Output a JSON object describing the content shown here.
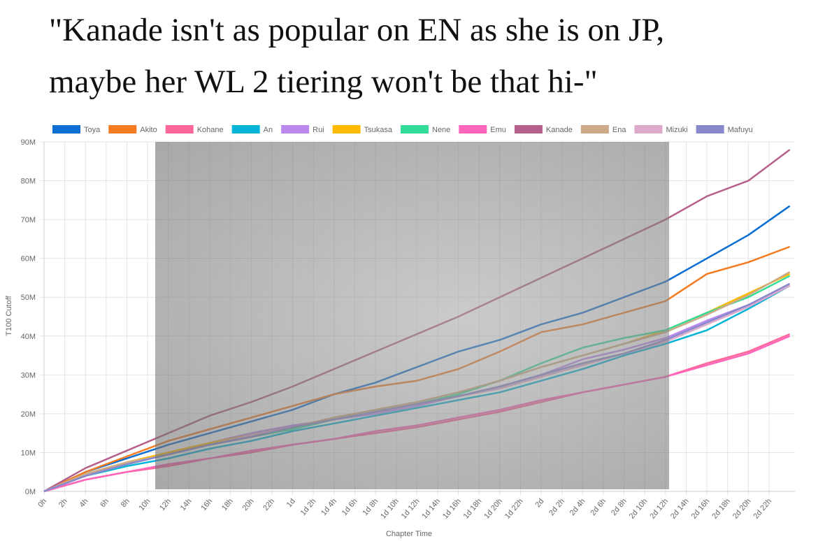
{
  "chart_data": {
    "type": "line",
    "title": [
      "\"Kanade isn't as popular on EN as she is on JP,",
      "maybe her WL 2 tiering won't be that hi-\""
    ],
    "x_label": "Chapter Time",
    "y_label": "T100 Cutoff",
    "x": [
      0,
      4,
      8,
      12,
      16,
      20,
      24,
      28,
      32,
      36,
      40,
      44,
      48,
      52,
      56,
      60,
      64,
      68,
      72
    ],
    "xlim": [
      0,
      72.5
    ],
    "xticks": [
      {
        "value": 0,
        "label": "0h"
      },
      {
        "value": 2,
        "label": "2h"
      },
      {
        "value": 4,
        "label": "4h"
      },
      {
        "value": 6,
        "label": "6h"
      },
      {
        "value": 8,
        "label": "8h"
      },
      {
        "value": 10,
        "label": "10h"
      },
      {
        "value": 12,
        "label": "12h"
      },
      {
        "value": 14,
        "label": "14h"
      },
      {
        "value": 16,
        "label": "16h"
      },
      {
        "value": 18,
        "label": "18h"
      },
      {
        "value": 20,
        "label": "20h"
      },
      {
        "value": 22,
        "label": "22h"
      },
      {
        "value": 24,
        "label": "1d"
      },
      {
        "value": 26,
        "label": "1d 2h"
      },
      {
        "value": 28,
        "label": "1d 4h"
      },
      {
        "value": 30,
        "label": "1d 6h"
      },
      {
        "value": 32,
        "label": "1d 8h"
      },
      {
        "value": 34,
        "label": "1d 10h"
      },
      {
        "value": 36,
        "label": "1d 12h"
      },
      {
        "value": 38,
        "label": "1d 14h"
      },
      {
        "value": 40,
        "label": "1d 16h"
      },
      {
        "value": 42,
        "label": "1d 18h"
      },
      {
        "value": 44,
        "label": "1d 20h"
      },
      {
        "value": 46,
        "label": "1d 22h"
      },
      {
        "value": 48,
        "label": "2d"
      },
      {
        "value": 50,
        "label": "2d 2h"
      },
      {
        "value": 52,
        "label": "2d 4h"
      },
      {
        "value": 54,
        "label": "2d 6h"
      },
      {
        "value": 56,
        "label": "2d 8h"
      },
      {
        "value": 58,
        "label": "2d 10h"
      },
      {
        "value": 60,
        "label": "2d 12h"
      },
      {
        "value": 62,
        "label": "2d 14h"
      },
      {
        "value": 64,
        "label": "2d 16h"
      },
      {
        "value": 66,
        "label": "2d 18h"
      },
      {
        "value": 68,
        "label": "2d 20h"
      },
      {
        "value": 70,
        "label": "2d 22h"
      }
    ],
    "ylim": [
      0,
      90
    ],
    "yticks": [
      {
        "value": 0,
        "label": "0M"
      },
      {
        "value": 10,
        "label": "10M"
      },
      {
        "value": 20,
        "label": "20M"
      },
      {
        "value": 30,
        "label": "30M"
      },
      {
        "value": 40,
        "label": "40M"
      },
      {
        "value": 50,
        "label": "50M"
      },
      {
        "value": 60,
        "label": "60M"
      },
      {
        "value": 70,
        "label": "70M"
      },
      {
        "value": 80,
        "label": "80M"
      },
      {
        "value": 90,
        "label": "90M"
      }
    ],
    "grid": true,
    "legend": "top",
    "series": [
      {
        "name": "Toya",
        "color": "#0a6ed3",
        "values": [
          0,
          5,
          8.5,
          12,
          15,
          18,
          21,
          25,
          28,
          32,
          36,
          39,
          43,
          46,
          50,
          54,
          60,
          66,
          73.5
        ]
      },
      {
        "name": "Akito",
        "color": "#f47b20",
        "values": [
          0,
          5,
          9,
          13,
          16,
          19,
          22,
          25,
          27,
          28.5,
          31.5,
          36,
          41,
          43,
          46,
          49,
          56,
          59,
          63
        ]
      },
      {
        "name": "Kohane",
        "color": "#ff6699",
        "values": [
          0,
          3,
          5,
          6.5,
          8.5,
          10,
          12,
          13.5,
          15,
          16.5,
          18.5,
          20.5,
          23,
          25.5,
          27.5,
          29.5,
          33,
          36,
          40.5
        ]
      },
      {
        "name": "An",
        "color": "#00b4d8",
        "values": [
          0,
          4,
          6.5,
          8.5,
          11,
          13,
          15.5,
          17.5,
          19.5,
          21.5,
          23.5,
          25.5,
          28.5,
          31.5,
          35,
          38,
          41.5,
          47,
          53
        ]
      },
      {
        "name": "Rui",
        "color": "#bb88ee",
        "values": [
          0,
          4,
          7,
          9.5,
          12.5,
          15,
          17,
          18.5,
          20,
          22,
          24.5,
          27,
          30,
          34,
          36.5,
          39.5,
          44,
          48,
          53
        ]
      },
      {
        "name": "Tsukasa",
        "color": "#ffbb00",
        "values": [
          0,
          4.5,
          7.5,
          10,
          12.5,
          14.5,
          16.5,
          19,
          21,
          23,
          25.5,
          28.5,
          32,
          35,
          38,
          41.5,
          46,
          51,
          56
        ]
      },
      {
        "name": "Nene",
        "color": "#33dd99",
        "values": [
          0,
          4,
          7,
          9.5,
          12,
          14,
          16,
          18.5,
          20.5,
          22.5,
          25,
          28.5,
          33,
          37,
          39.5,
          41.5,
          46,
          50,
          55.5
        ]
      },
      {
        "name": "Emu",
        "color": "#ff66bb",
        "values": [
          0,
          3,
          5,
          7,
          8.5,
          10.5,
          12,
          13.5,
          15.5,
          17,
          19,
          21,
          23.5,
          25.5,
          27.5,
          29.5,
          32.5,
          35.5,
          40
        ]
      },
      {
        "name": "Kanade",
        "color": "#b5608a",
        "values": [
          0,
          6,
          10.5,
          15,
          19.5,
          23,
          27,
          31.5,
          36,
          40.5,
          45,
          50,
          55,
          60,
          65,
          70,
          76,
          80,
          88
        ]
      },
      {
        "name": "Ena",
        "color": "#ccaa88",
        "values": [
          0,
          4.5,
          7.5,
          9.5,
          12,
          14.5,
          16.5,
          19,
          21,
          23,
          25.5,
          28.5,
          32,
          35,
          38,
          41,
          45.5,
          50.5,
          56.5
        ]
      },
      {
        "name": "Mizuki",
        "color": "#ddaacc",
        "values": [
          0,
          4,
          7,
          9.5,
          12,
          14.5,
          16.5,
          18.5,
          20.5,
          22.5,
          24.5,
          26.5,
          29.5,
          32.5,
          35.5,
          38.5,
          43,
          47.5,
          53
        ]
      },
      {
        "name": "Mafuyu",
        "color": "#8888cc",
        "values": [
          0,
          4,
          7,
          9.5,
          12,
          14,
          16.5,
          18.5,
          20.5,
          22.5,
          24.5,
          27,
          30,
          33,
          35.5,
          39,
          43.5,
          48,
          53.5
        ]
      }
    ]
  }
}
